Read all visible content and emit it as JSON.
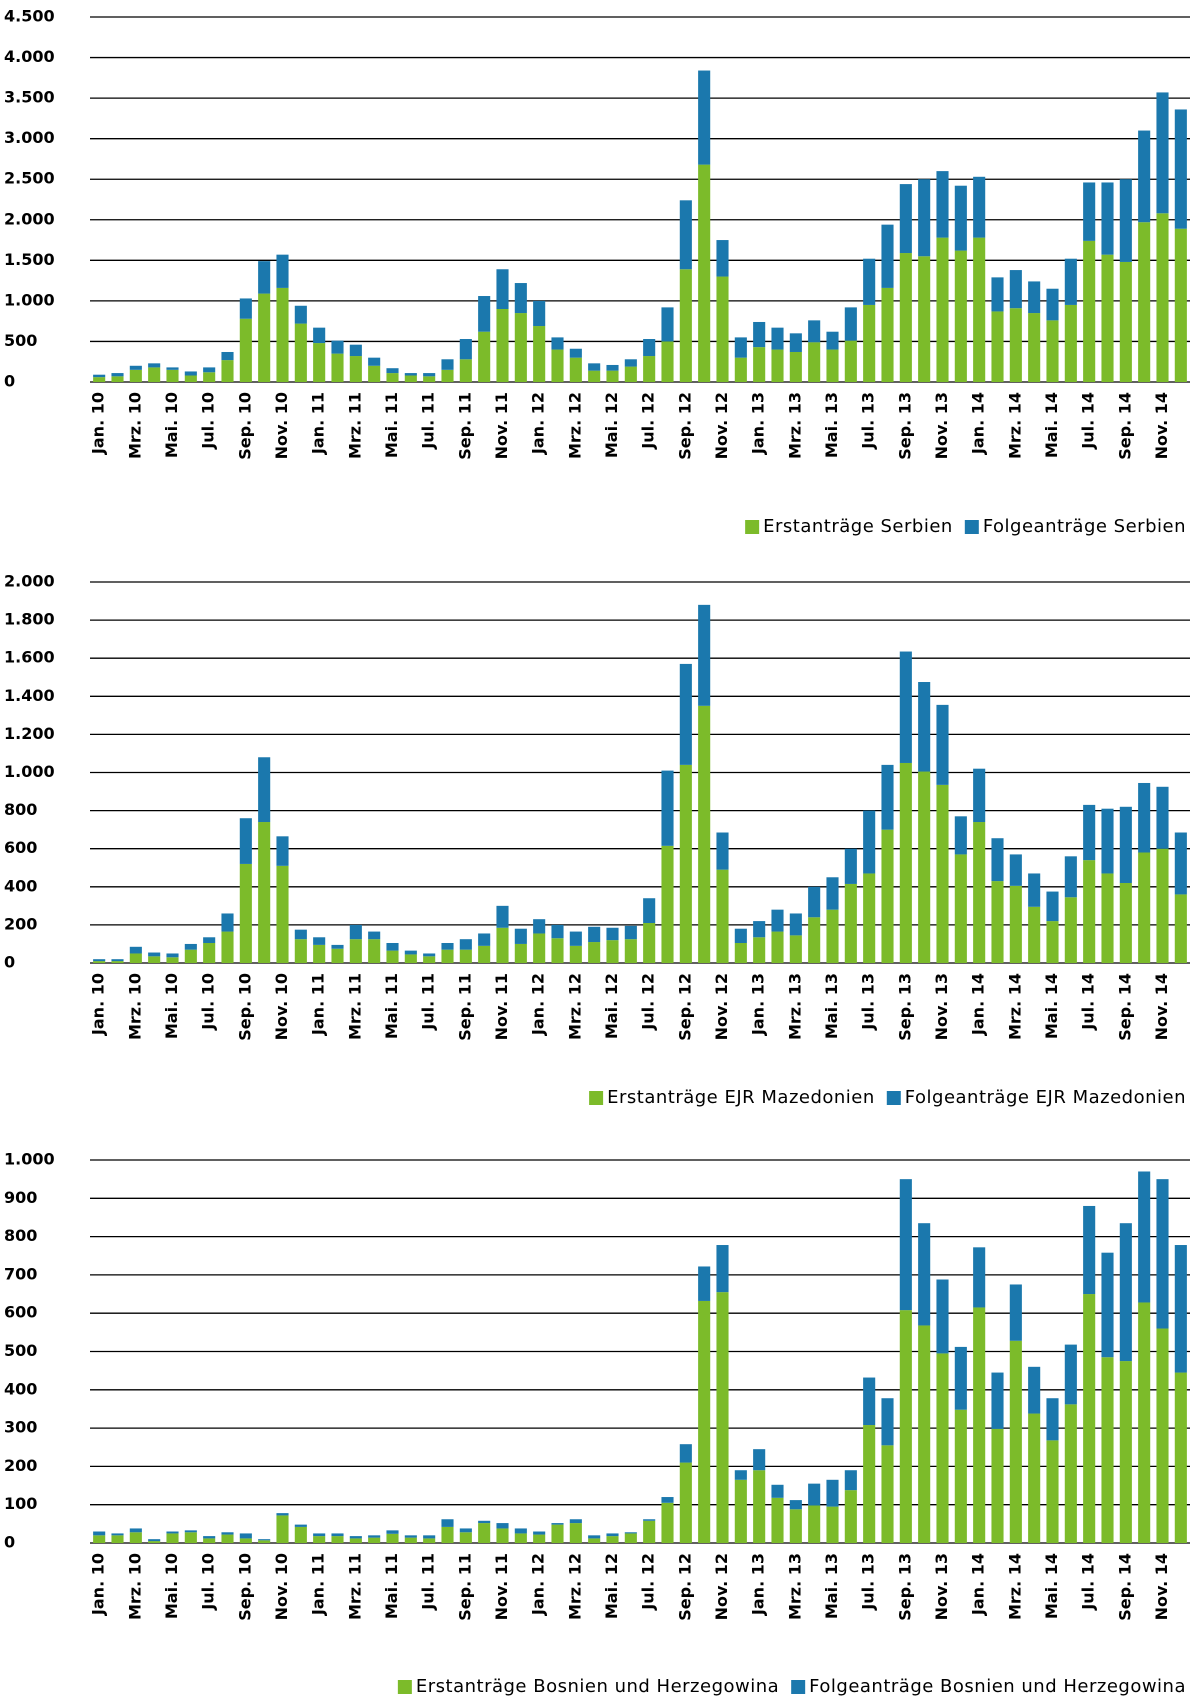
{
  "chart_data": [
    {
      "type": "bar",
      "stacked": true,
      "legend": "bottom-right",
      "categories": [
        "Jan. 10",
        null,
        "Mrz. 10",
        null,
        "Mai. 10",
        null,
        "Jul. 10",
        null,
        "Sep. 10",
        null,
        "Nov. 10",
        null,
        "Jan. 11",
        null,
        "Mrz. 11",
        null,
        "Mai. 11",
        null,
        "Jul. 11",
        null,
        "Sep. 11",
        null,
        "Nov. 11",
        null,
        "Jan. 12",
        null,
        "Mrz. 12",
        null,
        "Mai. 12",
        null,
        "Jul. 12",
        null,
        "Sep. 12",
        null,
        "Nov. 12",
        null,
        "Jan. 13",
        null,
        "Mrz. 13",
        null,
        "Mai. 13",
        null,
        "Jul. 13",
        null,
        "Sep. 13",
        null,
        "Nov. 13",
        null,
        "Jan. 14",
        null,
        "Mrz. 14",
        null,
        "Mai. 14",
        null,
        "Jul. 14",
        null,
        "Sep. 14",
        null,
        "Nov. 14",
        null
      ],
      "series": [
        {
          "name": "Erstanträge Serbien",
          "color": "#7cbb2a",
          "values": [
            60,
            70,
            150,
            180,
            150,
            80,
            120,
            270,
            780,
            1090,
            1160,
            720,
            480,
            350,
            320,
            200,
            110,
            80,
            70,
            150,
            280,
            620,
            900,
            850,
            690,
            400,
            300,
            140,
            140,
            190,
            320,
            500,
            1390,
            2680,
            1300,
            300,
            430,
            400,
            370,
            490,
            400,
            510,
            950,
            1160,
            1590,
            1550,
            1780,
            1620,
            1780,
            870,
            910,
            850,
            760,
            950,
            1740,
            1570,
            1480,
            1970,
            2080,
            1890
          ]
        },
        {
          "name": "Folgeanträge Serbien",
          "color": "#1b78ad",
          "values": [
            30,
            40,
            50,
            50,
            30,
            50,
            60,
            100,
            250,
            400,
            410,
            220,
            190,
            160,
            140,
            100,
            60,
            30,
            40,
            130,
            250,
            440,
            490,
            370,
            310,
            150,
            110,
            90,
            70,
            90,
            210,
            420,
            850,
            1160,
            450,
            250,
            310,
            270,
            230,
            270,
            220,
            410,
            570,
            780,
            850,
            950,
            820,
            800,
            750,
            420,
            470,
            390,
            390,
            570,
            720,
            890,
            1020,
            1130,
            1490,
            1470
          ]
        }
      ],
      "ylim": [
        0,
        4500
      ],
      "yticks": [
        0,
        500,
        {
          "value": 1000,
          "label": "1.000"
        },
        {
          "value": 1500,
          "label": "1.500"
        },
        {
          "value": 2000,
          "label": "2.000"
        },
        {
          "value": 2500,
          "label": "2.500"
        },
        {
          "value": 3000,
          "label": "3.000"
        },
        {
          "value": 3500,
          "label": "3.500"
        },
        {
          "value": 4000,
          "label": "4.000"
        },
        {
          "value": 4500,
          "label": "4.500"
        }
      ],
      "grid": true
    },
    {
      "type": "bar",
      "stacked": true,
      "legend": "bottom-right",
      "categories": [
        "Jan. 10",
        null,
        "Mrz. 10",
        null,
        "Mai. 10",
        null,
        "Jul. 10",
        null,
        "Sep. 10",
        null,
        "Nov. 10",
        null,
        "Jan. 11",
        null,
        "Mrz. 11",
        null,
        "Mai. 11",
        null,
        "Jul. 11",
        null,
        "Sep. 11",
        null,
        "Nov. 11",
        null,
        "Jan. 12",
        null,
        "Mrz. 12",
        null,
        "Mai. 12",
        null,
        "Jul. 12",
        null,
        "Sep. 12",
        null,
        "Nov. 12",
        null,
        "Jan. 13",
        null,
        "Mrz. 13",
        null,
        "Mai. 13",
        null,
        "Jul. 13",
        null,
        "Sep. 13",
        null,
        "Nov. 13",
        null,
        "Jan. 14",
        null,
        "Mrz. 14",
        null,
        "Mai. 14",
        null,
        "Jul. 14",
        null,
        "Sep. 14",
        null,
        "Nov. 14",
        null
      ],
      "series": [
        {
          "name": "Erstanträge EJR Mazedonien",
          "color": "#7cbb2a",
          "values": [
            10,
            10,
            50,
            35,
            30,
            70,
            105,
            165,
            520,
            740,
            510,
            125,
            95,
            75,
            125,
            125,
            65,
            45,
            35,
            70,
            70,
            90,
            185,
            100,
            155,
            130,
            90,
            110,
            120,
            125,
            210,
            615,
            1040,
            1350,
            490,
            105,
            135,
            165,
            145,
            240,
            280,
            415,
            470,
            700,
            1050,
            1005,
            935,
            570,
            740,
            430,
            405,
            295,
            220,
            345,
            540,
            470,
            420,
            580,
            600,
            360
          ]
        },
        {
          "name": "Folgeanträge EJR Mazedonien",
          "color": "#1b78ad",
          "values": [
            10,
            10,
            35,
            20,
            20,
            30,
            30,
            95,
            240,
            340,
            155,
            50,
            40,
            20,
            75,
            40,
            40,
            20,
            15,
            35,
            55,
            65,
            115,
            80,
            75,
            70,
            75,
            80,
            65,
            70,
            130,
            395,
            530,
            530,
            195,
            75,
            85,
            115,
            115,
            160,
            170,
            185,
            330,
            340,
            585,
            470,
            420,
            200,
            280,
            225,
            165,
            175,
            155,
            215,
            290,
            340,
            400,
            365,
            325,
            325
          ]
        }
      ],
      "ylim": [
        0,
        2000
      ],
      "yticks": [
        0,
        200,
        400,
        600,
        800,
        {
          "value": 1000,
          "label": "1.000"
        },
        {
          "value": 1200,
          "label": "1.200"
        },
        {
          "value": 1400,
          "label": "1.400"
        },
        {
          "value": 1600,
          "label": "1.600"
        },
        {
          "value": 1800,
          "label": "1.800"
        },
        {
          "value": 2000,
          "label": "2.000"
        }
      ],
      "grid": true
    },
    {
      "type": "bar",
      "stacked": true,
      "legend": "bottom-right",
      "categories": [
        "Jan. 10",
        null,
        "Mrz. 10",
        null,
        "Mai. 10",
        null,
        "Jul. 10",
        null,
        "Sep. 10",
        null,
        "Nov. 10",
        null,
        "Jan. 11",
        null,
        "Mrz. 11",
        null,
        "Mai. 11",
        null,
        "Jul. 11",
        null,
        "Sep. 11",
        null,
        "Nov. 11",
        null,
        "Jan. 12",
        null,
        "Mrz. 12",
        null,
        "Mai. 12",
        null,
        "Jul. 12",
        null,
        "Sep. 12",
        null,
        "Nov. 12",
        null,
        "Jan. 13",
        null,
        "Mrz. 13",
        null,
        "Mai. 13",
        null,
        "Jul. 13",
        null,
        "Sep. 13",
        null,
        "Nov. 13",
        null,
        "Jan. 14",
        null,
        "Mrz. 14",
        null,
        "Mai. 14",
        null,
        "Jul. 14",
        null,
        "Sep. 14",
        null,
        "Nov. 14",
        null
      ],
      "series": [
        {
          "name": "Erstanträge Bosnien und Herzegowina",
          "color": "#7cbb2a",
          "values": [
            20,
            20,
            28,
            5,
            25,
            28,
            12,
            22,
            12,
            7,
            72,
            42,
            18,
            18,
            12,
            14,
            24,
            14,
            12,
            42,
            28,
            52,
            38,
            25,
            22,
            48,
            52,
            12,
            18,
            25,
            58,
            105,
            210,
            632,
            655,
            165,
            190,
            118,
            88,
            98,
            95,
            138,
            308,
            255,
            608,
            568,
            495,
            348,
            615,
            298,
            528,
            338,
            268,
            362,
            650,
            485,
            475,
            628,
            560,
            445
          ]
        },
        {
          "name": "Folgeanträge Bosnien und Herzegowina",
          "color": "#1b78ad",
          "values": [
            10,
            5,
            10,
            5,
            5,
            5,
            6,
            6,
            13,
            3,
            6,
            6,
            7,
            7,
            6,
            6,
            9,
            6,
            8,
            20,
            10,
            6,
            14,
            13,
            8,
            4,
            10,
            8,
            7,
            3,
            4,
            15,
            48,
            90,
            123,
            25,
            55,
            34,
            24,
            57,
            70,
            52,
            124,
            123,
            342,
            267,
            193,
            164,
            157,
            147,
            147,
            122,
            110,
            156,
            230,
            273,
            360,
            342,
            390,
            333
          ]
        }
      ],
      "ylim": [
        0,
        1000
      ],
      "yticks": [
        0,
        100,
        200,
        300,
        400,
        500,
        600,
        700,
        800,
        900,
        {
          "value": 1000,
          "label": "1.000"
        }
      ],
      "grid": true
    }
  ]
}
